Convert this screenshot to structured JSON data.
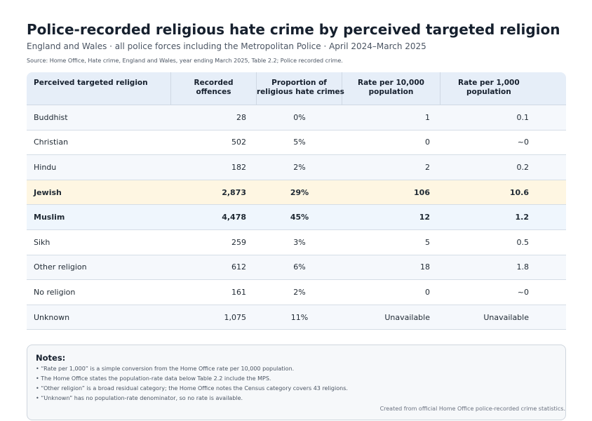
{
  "header": {
    "title": "Police-recorded religious hate crime by perceived targeted religion",
    "subtitle": "England and Wales · all police forces including the Metropolitan Police · April 2024–March 2025",
    "source": "Source: Home Office, Hate crime, England and Wales, year ending March 2025, Table 2.2; Police recorded crime."
  },
  "table": {
    "columns": [
      "Perceived targeted religion",
      "Recorded offences",
      "Proportion of religious hate crimes",
      "Rate per 10,000 population",
      "Rate per 1,000 population"
    ],
    "column_lines": [
      [
        "Perceived targeted religion"
      ],
      [
        "Recorded",
        "offences"
      ],
      [
        "Proportion of",
        "religious hate crimes"
      ],
      [
        "Rate per 10,000",
        "population"
      ],
      [
        "Rate per 1,000",
        "population"
      ]
    ],
    "rows": [
      {
        "religion": "Buddhist",
        "offences": "28",
        "proportion": "0%",
        "rate_10k": "1",
        "rate_1k": "0.1"
      },
      {
        "religion": "Christian",
        "offences": "502",
        "proportion": "5%",
        "rate_10k": "0",
        "rate_1k": "~0"
      },
      {
        "religion": "Hindu",
        "offences": "182",
        "proportion": "2%",
        "rate_10k": "2",
        "rate_1k": "0.2"
      },
      {
        "religion": "Jewish",
        "offences": "2,873",
        "proportion": "29%",
        "rate_10k": "106",
        "rate_1k": "10.6"
      },
      {
        "religion": "Muslim",
        "offences": "4,478",
        "proportion": "45%",
        "rate_10k": "12",
        "rate_1k": "1.2"
      },
      {
        "religion": "Sikh",
        "offences": "259",
        "proportion": "3%",
        "rate_10k": "5",
        "rate_1k": "0.5"
      },
      {
        "religion": "Other religion",
        "offences": "612",
        "proportion": "6%",
        "rate_10k": "18",
        "rate_1k": "1.8"
      },
      {
        "religion": "No religion",
        "offences": "161",
        "proportion": "2%",
        "rate_10k": "0",
        "rate_1k": "~0"
      },
      {
        "religion": "Unknown",
        "offences": "1,075",
        "proportion": "11%",
        "rate_10k": "Unavailable",
        "rate_1k": "Unavailable"
      }
    ],
    "highlight_colors": {
      "Jewish": "#fef6e2",
      "Muslim": "#eff6fd"
    }
  },
  "notes": {
    "title": "Notes:",
    "items": [
      "“Rate per 1,000” is a simple conversion from the Home Office rate per 10,000 population.",
      "The Home Office states the population-rate data below Table 2.2 include the MPS.",
      "“Other religion” is a broad residual category; the Home Office notes the Census category covers 43 religions.",
      "“Unknown” has no population-rate denominator, so no rate is available."
    ],
    "credit": "Created from official Home Office police-recorded crime statistics."
  }
}
